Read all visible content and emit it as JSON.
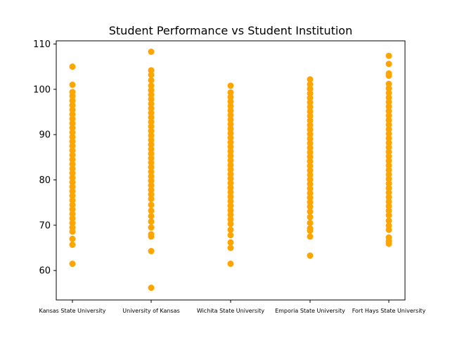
{
  "chart_data": {
    "type": "scatter",
    "title": "Student Performance vs Student Institution",
    "xlabel": "",
    "ylabel": "",
    "categories": [
      "Kansas State University",
      "University of Kansas",
      "Wichita State University",
      "Emporia State University",
      "Fort Hays State University"
    ],
    "ylim": [
      53.5,
      110.7
    ],
    "yticks": [
      60,
      70,
      80,
      90,
      100,
      110
    ],
    "grid": false,
    "legend": false,
    "marker_color": "#ffa500",
    "series": [
      {
        "category": "Kansas State University",
        "values": [
          105,
          101,
          99.4,
          98.5,
          97.5,
          96.5,
          95.5,
          94.5,
          93.5,
          92.5,
          91.5,
          90.5,
          89.5,
          88.5,
          87.5,
          86.5,
          85.5,
          84.5,
          83.5,
          82.5,
          81.5,
          80.5,
          79.5,
          78.5,
          77.5,
          76.5,
          75.5,
          74.5,
          73.5,
          72.5,
          71.5,
          70.5,
          69.5,
          68.6,
          67,
          65.7,
          61.5
        ]
      },
      {
        "category": "University of Kansas",
        "values": [
          108.3,
          104.2,
          103.2,
          102,
          100.8,
          99.8,
          98.8,
          97.8,
          96.8,
          95.8,
          94.8,
          93.8,
          92.8,
          91.8,
          90.8,
          89.8,
          88.8,
          87.8,
          86.8,
          85.8,
          84.8,
          83.8,
          82.8,
          81.8,
          80.8,
          79.8,
          78.8,
          77.8,
          76.8,
          75.8,
          74.5,
          73.2,
          72,
          70.8,
          69.5,
          68,
          67.5,
          64.3,
          56.2
        ]
      },
      {
        "category": "Wichita State University",
        "values": [
          100.8,
          99.3,
          98.3,
          97.3,
          96.3,
          95.3,
          94.3,
          93.3,
          92.3,
          91.3,
          90.3,
          89.3,
          88.3,
          87.3,
          86.3,
          85.3,
          84.3,
          83.3,
          82.3,
          81.3,
          80.3,
          79.3,
          78.3,
          77.3,
          76.3,
          75.3,
          74.3,
          73.3,
          72.3,
          71.3,
          70.3,
          69,
          67.8,
          66.2,
          65,
          61.5
        ]
      },
      {
        "category": "Emporia State University",
        "values": [
          102.2,
          101.1,
          100.1,
          99.1,
          98.1,
          97.1,
          96.1,
          95.1,
          94.1,
          93.1,
          92.1,
          91.1,
          90.1,
          89.1,
          88.1,
          87.1,
          86.1,
          85.1,
          84.1,
          83.1,
          82.1,
          81.1,
          80.1,
          79.1,
          78.1,
          77.1,
          76.1,
          75.1,
          74.1,
          73,
          71.8,
          70.5,
          69.3,
          68.8,
          67.5,
          63.3
        ]
      },
      {
        "category": "Fort Hays State University",
        "values": [
          107.4,
          105.6,
          103.5,
          103,
          101.2,
          100.2,
          99.2,
          98.2,
          97.2,
          96.2,
          95.2,
          94.2,
          93.2,
          92.2,
          91.2,
          90.2,
          89.2,
          88.2,
          87.2,
          86.2,
          85.2,
          84.2,
          83.2,
          82.2,
          81.2,
          80.2,
          79.2,
          78.2,
          77.2,
          76.2,
          75.2,
          74.2,
          73.2,
          72.2,
          71,
          69.9,
          69,
          67.3,
          66.5,
          65.9
        ]
      }
    ]
  }
}
